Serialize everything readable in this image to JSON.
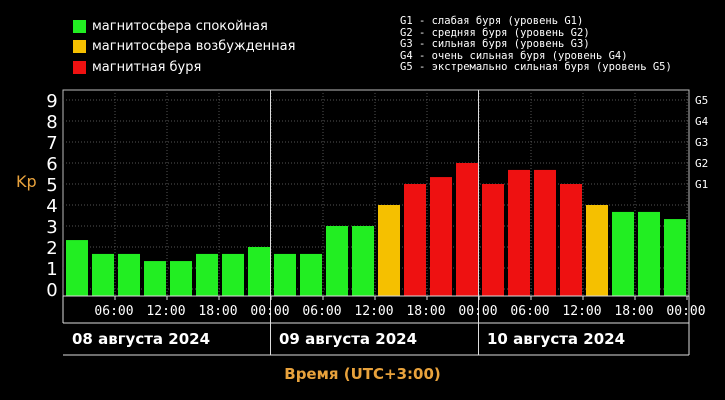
{
  "legend": {
    "items": [
      {
        "label": "магнитосфера спокойная",
        "color": "#22ee22"
      },
      {
        "label": "магнитосфера возбужденная",
        "color": "#f5c000"
      },
      {
        "label": "магнитная буря",
        "color": "#ee1111"
      }
    ]
  },
  "storm_legend": [
    "G1 - слабая буря (уровень G1)",
    "G2 - средняя буря (уровень G2)",
    "G3 - сильная буря (уровень G3)",
    "G4 - очень сильная буря (уровень G4)",
    "G5 - экстремально сильная буря (уровень G5)"
  ],
  "chart_data": {
    "type": "bar",
    "ylabel": "Kp",
    "xlabel": "Время (UTC+3:00)",
    "ylim": [
      0,
      9
    ],
    "y_ticks": [
      "0",
      "1",
      "2",
      "3",
      "4",
      "5",
      "6",
      "7",
      "8",
      "9"
    ],
    "right_ticks": [
      {
        "label": "G1",
        "value": 5
      },
      {
        "label": "G2",
        "value": 6
      },
      {
        "label": "G3",
        "value": 7
      },
      {
        "label": "G4",
        "value": 8
      },
      {
        "label": "G5",
        "value": 9
      }
    ],
    "time_ticks": [
      "06:00",
      "12:00",
      "18:00",
      "00:00",
      "06:00",
      "12:00",
      "18:00",
      "00:00",
      "06:00",
      "12:00",
      "18:00",
      "00:00"
    ],
    "days": [
      "08 августа 2024",
      "09 августа 2024",
      "10 августа 2024"
    ],
    "values": [
      2.33,
      1.67,
      1.67,
      1.33,
      1.33,
      1.67,
      1.67,
      2.0,
      1.67,
      1.67,
      3.0,
      3.0,
      4.0,
      5.0,
      5.33,
      6.0,
      5.0,
      5.67,
      5.67,
      5.0,
      4.0,
      3.67,
      3.67,
      3.33
    ],
    "colors": [
      "#22ee22",
      "#22ee22",
      "#22ee22",
      "#22ee22",
      "#22ee22",
      "#22ee22",
      "#22ee22",
      "#22ee22",
      "#22ee22",
      "#22ee22",
      "#22ee22",
      "#22ee22",
      "#f5c000",
      "#ee1111",
      "#ee1111",
      "#ee1111",
      "#ee1111",
      "#ee1111",
      "#ee1111",
      "#ee1111",
      "#f5c000",
      "#22ee22",
      "#22ee22",
      "#22ee22"
    ],
    "grid": true
  }
}
